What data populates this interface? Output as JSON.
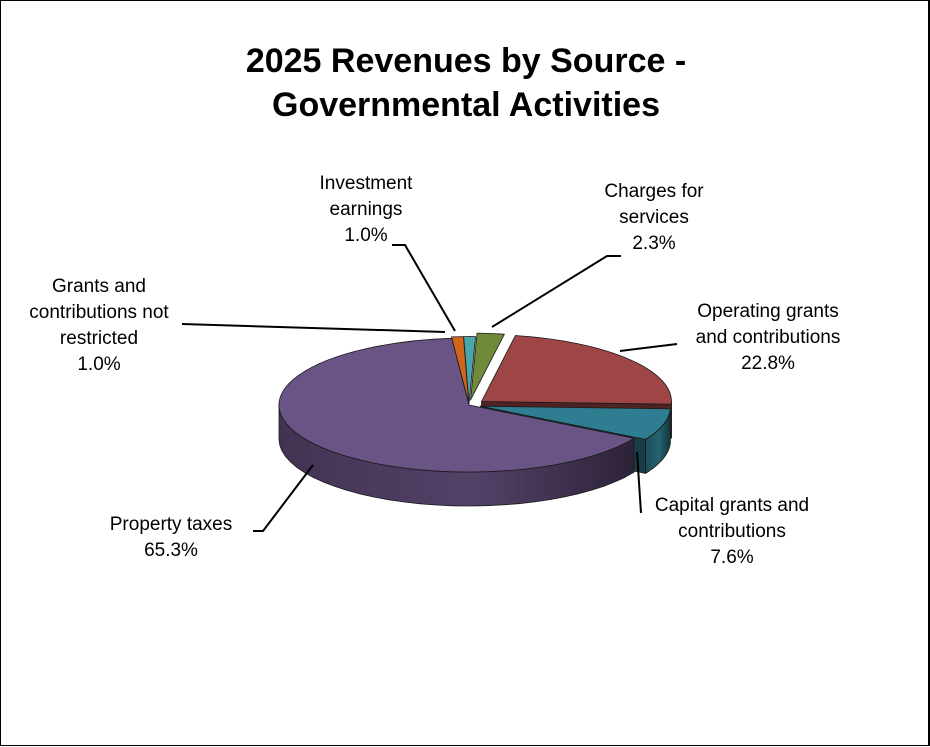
{
  "chart_data": {
    "type": "pie",
    "title_line1": "2025 Revenues by Source -",
    "title_line2": "Governmental Activities",
    "three_d": true,
    "slices": [
      {
        "key": "charges",
        "name_lines": [
          "Charges for",
          "services"
        ],
        "value": 2.3,
        "label": "2.3%",
        "color": "#6f8a3a"
      },
      {
        "key": "operating",
        "name_lines": [
          "Operating grants",
          "and contributions"
        ],
        "value": 22.8,
        "label": "22.8%",
        "color": "#9e4645"
      },
      {
        "key": "capital",
        "name_lines": [
          "Capital grants and",
          "contributions"
        ],
        "value": 7.6,
        "label": "7.6%",
        "color": "#2f7d91"
      },
      {
        "key": "property",
        "name_lines": [
          "Property taxes"
        ],
        "value": 65.3,
        "label": "65.3%",
        "color": "#6a5385"
      },
      {
        "key": "unrestricted",
        "name_lines": [
          "Grants and",
          "contributions not",
          "restricted"
        ],
        "value": 1.0,
        "label": "1.0%",
        "color": "#d0661c"
      },
      {
        "key": "investment",
        "name_lines": [
          "Investment",
          "earnings"
        ],
        "value": 1.0,
        "label": "1.0%",
        "color": "#4aa6a8"
      }
    ]
  }
}
